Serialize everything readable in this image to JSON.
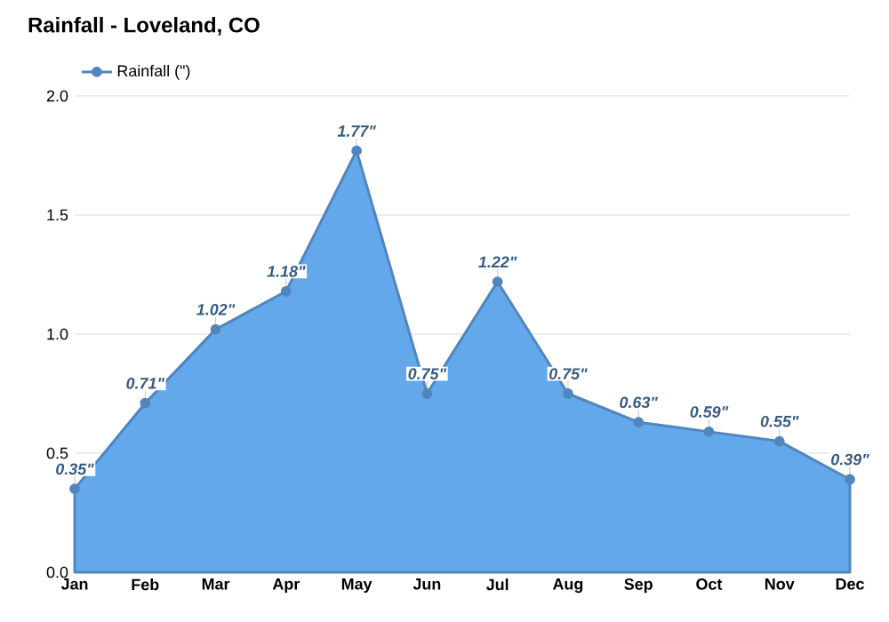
{
  "chart_data": {
    "type": "area",
    "title": "Rainfall - Loveland, CO",
    "categories": [
      "Jan",
      "Feb",
      "Mar",
      "Apr",
      "May",
      "Jun",
      "Jul",
      "Aug",
      "Sep",
      "Oct",
      "Nov",
      "Dec"
    ],
    "series": [
      {
        "name": "Rainfall (\")",
        "color": "#64a8ec",
        "values": [
          0.35,
          0.71,
          1.02,
          1.18,
          1.77,
          0.75,
          1.22,
          0.75,
          0.63,
          0.59,
          0.55,
          0.39
        ],
        "value_labels": [
          "0.35\"",
          "0.71\"",
          "1.02\"",
          "1.18\"",
          "1.77\"",
          "0.75\"",
          "1.22\"",
          "0.75\"",
          "0.63\"",
          "0.59\"",
          "0.55\"",
          "0.39\""
        ]
      }
    ],
    "ylim": [
      0,
      2
    ],
    "yticks": [
      {
        "value": 0,
        "label": "0.0"
      },
      0.5,
      {
        "value": 1,
        "label": "1.0"
      },
      1.5,
      {
        "value": 2,
        "label": "2.0"
      }
    ],
    "grid": "y",
    "legend": "top left",
    "marker": "circle",
    "line_style": "solid"
  }
}
